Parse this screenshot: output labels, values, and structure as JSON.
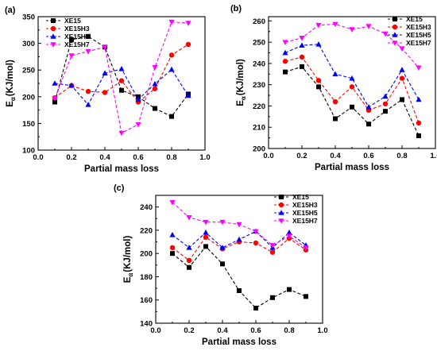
{
  "figure": {
    "series_styles": [
      {
        "name": "XE15",
        "color": "#000000",
        "marker": "square"
      },
      {
        "name": "XE15H3",
        "color": "#ff0000",
        "marker": "circle"
      },
      {
        "name": "XE15H5",
        "color": "#0000ff",
        "marker": "triangle-up"
      },
      {
        "name": "XE15H7",
        "color": "#ff00ff",
        "marker": "triangle-down"
      }
    ]
  },
  "chart_data": [
    {
      "panel_label": "(a)",
      "type": "line",
      "xlabel": "Partial mass loss",
      "ylabel": "E",
      "ylabel_sub": "α",
      "ylabel_unit": "(KJ/mol)",
      "xlim": [
        0.0,
        1.0
      ],
      "ylim": [
        100,
        350
      ],
      "xticks": [
        "0.0",
        "0.2",
        "0.4",
        "0.6",
        "0.8",
        "1.0"
      ],
      "yticks": [
        "100",
        "150",
        "200",
        "250",
        "300",
        "350"
      ],
      "legend_position": "top-left",
      "grid": false,
      "x": [
        0.1,
        0.2,
        0.3,
        0.4,
        0.5,
        0.6,
        0.7,
        0.8,
        0.9
      ],
      "series": [
        {
          "name": "XE15",
          "values": [
            190,
            307,
            313,
            293,
            212,
            200,
            178,
            163,
            205
          ]
        },
        {
          "name": "XE15H3",
          "values": [
            198,
            221,
            210,
            208,
            230,
            190,
            215,
            278,
            298
          ]
        },
        {
          "name": "XE15H5",
          "values": [
            225,
            221,
            185,
            244,
            252,
            195,
            224,
            251,
            202
          ]
        },
        {
          "name": "XE15H7",
          "values": [
            197,
            277,
            285,
            293,
            132,
            148,
            255,
            340,
            338
          ]
        }
      ]
    },
    {
      "panel_label": "(b)",
      "type": "line",
      "xlabel": "Partial mass loss",
      "ylabel": "E",
      "ylabel_sub": "α",
      "ylabel_unit": "(KJ/mol)",
      "xlim": [
        0.0,
        1.0
      ],
      "ylim": [
        200,
        262
      ],
      "xticks": [
        "0.0",
        "0.2",
        "0.4",
        "0.6",
        "0.8",
        "1.0"
      ],
      "yticks": [
        "200",
        "210",
        "220",
        "230",
        "240",
        "250",
        "260"
      ],
      "legend_position": "top-right",
      "grid": false,
      "x": [
        0.1,
        0.2,
        0.3,
        0.4,
        0.5,
        0.6,
        0.7,
        0.8,
        0.9
      ],
      "series": [
        {
          "name": "XE15",
          "values": [
            236,
            238.5,
            229,
            214,
            219.5,
            211.5,
            217.5,
            223,
            206
          ]
        },
        {
          "name": "XE15H3",
          "values": [
            241,
            243,
            232,
            222,
            229,
            218,
            221,
            233,
            212
          ]
        },
        {
          "name": "XE15H5",
          "values": [
            245,
            248.5,
            249,
            235,
            233,
            219.5,
            224.5,
            237,
            223
          ]
        },
        {
          "name": "XE15H7",
          "values": [
            250,
            252,
            258,
            258.5,
            256,
            257.5,
            254,
            247,
            238
          ]
        }
      ]
    },
    {
      "panel_label": "(c)",
      "type": "line",
      "xlabel": "Partial mass loss",
      "ylabel": "E",
      "ylabel_sub": "α",
      "ylabel_unit": "(KJ/mol)",
      "xlim": [
        0.0,
        1.0
      ],
      "ylim": [
        140,
        250
      ],
      "xticks": [
        "0.0",
        "0.2",
        "0.4",
        "0.6",
        "0.8",
        "1.0"
      ],
      "yticks": [
        "140",
        "160",
        "180",
        "200",
        "220",
        "240"
      ],
      "legend_position": "top-right",
      "grid": false,
      "x": [
        0.1,
        0.2,
        0.3,
        0.4,
        0.5,
        0.6,
        0.7,
        0.8,
        0.9
      ],
      "series": [
        {
          "name": "XE15",
          "values": [
            200,
            188,
            206,
            191,
            168,
            153,
            162,
            169,
            163
          ]
        },
        {
          "name": "XE15H3",
          "values": [
            205,
            194,
            214,
            204,
            210,
            209,
            201,
            213,
            203
          ]
        },
        {
          "name": "XE15H5",
          "values": [
            216,
            205,
            218,
            205,
            212,
            219,
            205,
            218,
            207
          ]
        },
        {
          "name": "XE15H7",
          "values": [
            244,
            231,
            227,
            227,
            225,
            219,
            207,
            215,
            205
          ]
        }
      ]
    }
  ]
}
